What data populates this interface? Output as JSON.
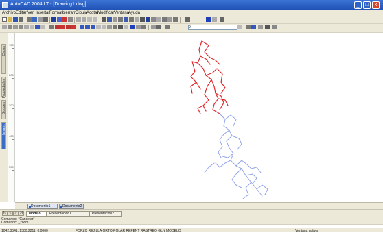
{
  "window": {
    "title": "AutoCAD 2004 LT - [Drawing1.dwg]",
    "controls": {
      "minimize": "_",
      "maximize": "□",
      "close": "x"
    }
  },
  "menu": {
    "items": [
      "Archivo",
      "Editar",
      "Ver",
      "Insertar",
      "Formato",
      "Herram.",
      "Dibujo",
      "Acotar",
      "Modificar",
      "Ventana",
      "Ayuda"
    ]
  },
  "toolbar2": {
    "layer_name": "0"
  },
  "left_panel": {
    "tabs": [
      "Capas",
      "Propiedades",
      "Bloques",
      "Herram."
    ]
  },
  "ruler": {
    "labels": [
      "100",
      "200",
      "300",
      "400",
      "500"
    ]
  },
  "colors": {
    "network_red": "#e0262a",
    "network_blue": "#8ea2e8",
    "title_bar": "#1f4fb3"
  },
  "doc_tabs": {
    "tab1": "Documento1",
    "tab2": "Documento2"
  },
  "layout_tabs": {
    "nav": [
      "|<",
      "<",
      ">",
      ">|"
    ],
    "tabs": [
      "Modelo",
      "Presentación1",
      "Presentación2"
    ]
  },
  "command_lines": [
    "Comando: *Cancelar*",
    "Comando: _zoom"
  ],
  "statusbar": {
    "coords": "1042.3541, 1380.2211, 0.0000",
    "modes": "FORZC  REJILLA  ORTO  POLAR  REFENT  RASTREO  GLN  MODELO",
    "right": "Ventana activa"
  }
}
